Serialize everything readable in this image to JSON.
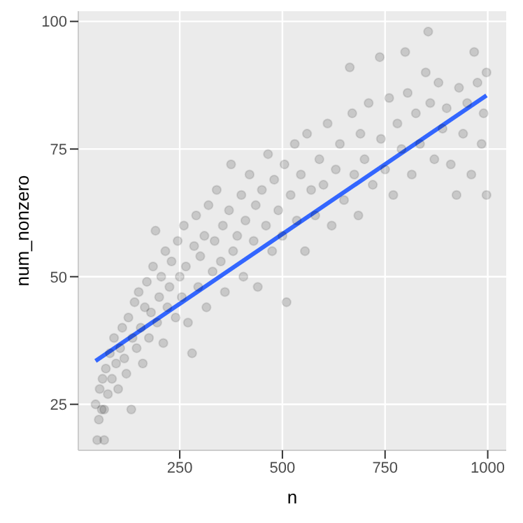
{
  "chart_data": {
    "type": "scatter",
    "xlabel": "n",
    "ylabel": "num_nonzero",
    "xlim": [
      3,
      1045
    ],
    "ylim": [
      16,
      102
    ],
    "xticks": [
      250,
      500,
      750,
      1000
    ],
    "yticks": [
      25,
      50,
      75,
      100
    ],
    "grid": true,
    "series": [
      {
        "marker": "circle",
        "color": "#000000",
        "x": [
          45,
          49,
          53,
          55,
          60,
          62,
          66,
          66,
          70,
          75,
          80,
          85,
          90,
          95,
          100,
          105,
          110,
          115,
          120,
          125,
          132,
          135,
          140,
          145,
          150,
          155,
          160,
          165,
          170,
          175,
          180,
          185,
          191,
          195,
          200,
          205,
          210,
          215,
          220,
          225,
          230,
          240,
          245,
          250,
          255,
          260,
          265,
          270,
          280,
          285,
          290,
          295,
          300,
          310,
          315,
          320,
          330,
          335,
          340,
          350,
          355,
          360,
          370,
          375,
          380,
          390,
          400,
          405,
          410,
          420,
          430,
          435,
          440,
          450,
          460,
          465,
          475,
          480,
          490,
          500,
          505,
          510,
          520,
          530,
          535,
          545,
          555,
          560,
          570,
          580,
          590,
          600,
          610,
          620,
          630,
          640,
          650,
          664,
          670,
          675,
          685,
          690,
          700,
          710,
          720,
          737,
          740,
          750,
          760,
          770,
          780,
          790,
          799,
          805,
          815,
          825,
          835,
          849,
          855,
          860,
          870,
          880,
          890,
          900,
          910,
          924,
          930,
          940,
          950,
          960,
          967,
          975,
          985,
          990,
          997,
          997
        ],
        "values": [
          25,
          18,
          22,
          28,
          24,
          30,
          18,
          24,
          32,
          27,
          35,
          30,
          38,
          33,
          28,
          36,
          40,
          34,
          31,
          42,
          24,
          38,
          45,
          36,
          47,
          40,
          33,
          44,
          49,
          38,
          43,
          52,
          59,
          41,
          46,
          50,
          37,
          55,
          44,
          48,
          53,
          42,
          57,
          50,
          46,
          60,
          52,
          41,
          35,
          56,
          62,
          48,
          54,
          58,
          44,
          64,
          51,
          57,
          67,
          53,
          60,
          47,
          63,
          72,
          55,
          58,
          66,
          50,
          61,
          70,
          57,
          64,
          48,
          67,
          60,
          74,
          55,
          69,
          63,
          58,
          72,
          45,
          66,
          76,
          61,
          70,
          55,
          78,
          67,
          62,
          73,
          68,
          80,
          60,
          71,
          76,
          65,
          91,
          82,
          70,
          62,
          78,
          73,
          84,
          68,
          93,
          77,
          71,
          85,
          66,
          80,
          75,
          94,
          86,
          70,
          82,
          76,
          90,
          98,
          84,
          73,
          88,
          79,
          83,
          72,
          66,
          87,
          78,
          84,
          70,
          94,
          88,
          76,
          82,
          66,
          90
        ]
      },
      {
        "type": "line",
        "color": "#3366ff",
        "x": [
          45,
          997
        ],
        "values": [
          33.5,
          85.5
        ]
      }
    ]
  }
}
